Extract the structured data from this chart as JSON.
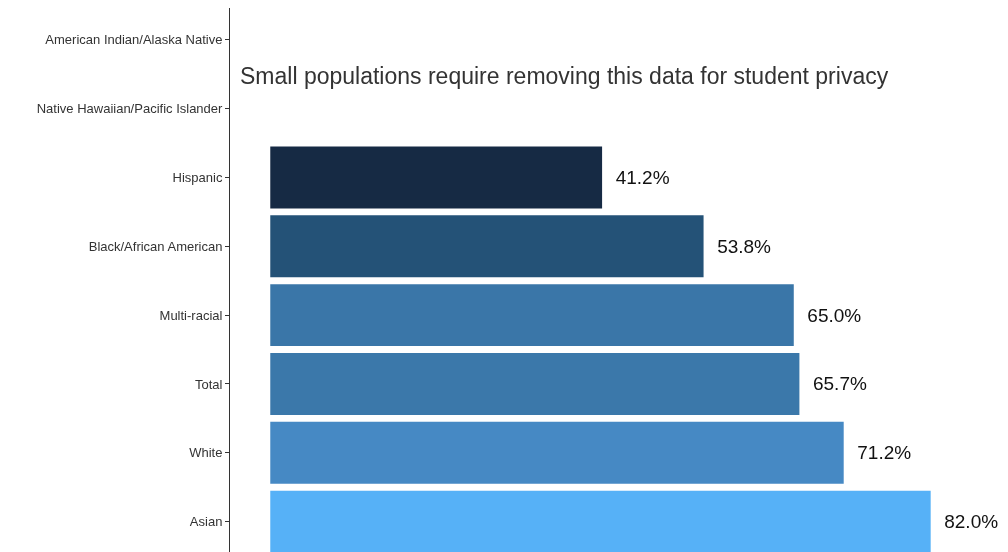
{
  "chart_data": {
    "type": "bar",
    "orientation": "horizontal",
    "categories": [
      "American Indian/Alaska Native",
      "Native Hawaiian/Pacific Islander",
      "Hispanic",
      "Black/African American",
      "Multi-racial",
      "Total",
      "White",
      "Asian"
    ],
    "values": [
      null,
      null,
      41.2,
      53.8,
      65.0,
      65.7,
      71.2,
      82.0
    ],
    "colors": [
      "#162a44",
      "#162a44",
      "#162a44",
      "#245277",
      "#3a76a8",
      "#3b78aa",
      "#4689c4",
      "#56b1f7"
    ],
    "value_labels": [
      null,
      null,
      "41.2%",
      "53.8%",
      "65.0%",
      "65.7%",
      "71.2%",
      "82.0%"
    ],
    "xlim": [
      -5,
      91.6
    ],
    "tick_labels": "y",
    "annotations": [
      "Small populations require removing this data for student privacy"
    ]
  }
}
